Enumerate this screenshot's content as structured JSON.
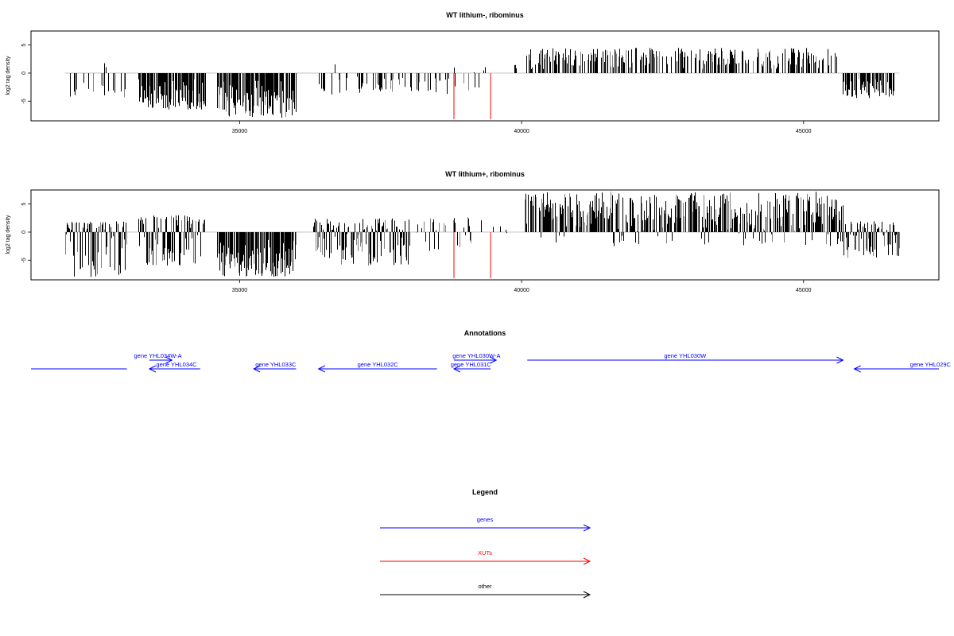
{
  "colors": {
    "gene": "#0000ff",
    "xut": "#ff0000",
    "other": "#000000",
    "bar": "#000000",
    "bar_grey": "#808080",
    "frame": "#000000"
  },
  "chart_data": [
    {
      "type": "bar",
      "title": "WT lithium-, ribominus",
      "ylabel": "log2 tag density",
      "xlim": [
        31300,
        47400
      ],
      "ylim": [
        -8.5,
        7.5
      ],
      "xticks": [
        35000,
        40000,
        45000
      ],
      "xtick_labels": [
        "35000",
        "40000",
        "45000"
      ],
      "yticks": [
        -5,
        0,
        5
      ],
      "ytick_labels": [
        "-5",
        "0",
        "5"
      ],
      "grid": false,
      "density_segments": [
        {
          "x0": 31900,
          "x1": 33000,
          "min": -4.5,
          "max": 0,
          "fill": 0.25
        },
        {
          "x0": 32600,
          "x1": 32700,
          "min": 0,
          "max": 2,
          "fill": 0.4
        },
        {
          "x0": 33200,
          "x1": 34400,
          "min": -6.5,
          "max": 0,
          "fill": 0.8
        },
        {
          "x0": 34600,
          "x1": 36000,
          "min": -8,
          "max": 0,
          "fill": 0.9
        },
        {
          "x0": 36400,
          "x1": 38800,
          "min": -4,
          "max": 0,
          "fill": 0.25
        },
        {
          "x0": 36600,
          "x1": 36700,
          "min": 0,
          "max": 2.3,
          "fill": 0.3
        },
        {
          "x0": 38800,
          "x1": 39500,
          "min": -3.5,
          "max": 1.5,
          "fill": 0.2
        },
        {
          "x0": 39800,
          "x1": 39900,
          "min": 0,
          "max": 1.5,
          "fill": 0.3
        },
        {
          "x0": 40050,
          "x1": 45600,
          "min": 0,
          "max": 4.5,
          "fill": 0.55
        },
        {
          "x0": 45700,
          "x1": 46600,
          "min": -4.5,
          "max": 0,
          "fill": 0.7
        }
      ],
      "xut_markers": [
        38800,
        39450
      ]
    },
    {
      "type": "bar",
      "title": "WT lithium+, ribominus",
      "ylabel": "log2 tag density",
      "xlim": [
        31300,
        47400
      ],
      "ylim": [
        -8.5,
        7.5
      ],
      "xticks": [
        35000,
        40000,
        45000
      ],
      "xtick_labels": [
        "35000",
        "40000",
        "45000"
      ],
      "yticks": [
        -5,
        0,
        5
      ],
      "ytick_labels": [
        "-5",
        "0",
        "5"
      ],
      "grid": false,
      "density_segments": [
        {
          "x0": 31900,
          "x1": 33000,
          "min": -8,
          "max": 2,
          "fill": 0.85
        },
        {
          "x0": 33200,
          "x1": 34400,
          "min": -6,
          "max": 3,
          "fill": 0.85
        },
        {
          "x0": 34600,
          "x1": 36000,
          "min": -8,
          "max": 0,
          "fill": 0.95
        },
        {
          "x0": 36300,
          "x1": 38000,
          "min": -6,
          "max": 2.5,
          "fill": 0.9
        },
        {
          "x0": 38000,
          "x1": 39300,
          "min": -3.5,
          "max": 3,
          "fill": 0.45
        },
        {
          "x0": 39400,
          "x1": 39900,
          "min": -1.5,
          "max": 1.5,
          "fill": 0.15
        },
        {
          "x0": 40050,
          "x1": 45700,
          "min": -2.5,
          "max": 7.2,
          "fill": 0.8
        },
        {
          "x0": 45700,
          "x1": 46700,
          "min": -5,
          "max": 2,
          "fill": 0.8
        }
      ],
      "xut_markers": [
        38800,
        39450
      ]
    }
  ],
  "annotations": {
    "title": "Annotations",
    "genes": [
      {
        "label": "",
        "x0": 31300,
        "x1": 33000,
        "row": 2,
        "dir": "none",
        "label_x": 0
      },
      {
        "label": "gene YHL034W-A",
        "x0": 33400,
        "x1": 33800,
        "row": 1,
        "dir": "right",
        "label_x": 33550
      },
      {
        "label": "gene YHL034C",
        "x0": 33400,
        "x1": 34300,
        "row": 2,
        "dir": "left",
        "label_x": 33880
      },
      {
        "label": "gene YHL033C",
        "x0": 35250,
        "x1": 36000,
        "row": 2,
        "dir": "left",
        "label_x": 35640
      },
      {
        "label": "gene YHL032C",
        "x0": 36400,
        "x1": 38500,
        "row": 2,
        "dir": "left",
        "label_x": 37450
      },
      {
        "label": "gene YHL030W-A",
        "x0": 38800,
        "x1": 39550,
        "row": 1,
        "dir": "right",
        "label_x": 39200
      },
      {
        "label": "gene YHL031C",
        "x0": 38800,
        "x1": 39450,
        "row": 2,
        "dir": "left",
        "label_x": 39100
      },
      {
        "label": "gene YHL030W",
        "x0": 40100,
        "x1": 45700,
        "row": 1,
        "dir": "right",
        "label_x": 42900
      },
      {
        "label": "gene YHL029C",
        "x0": 45900,
        "x1": 47400,
        "row": 2,
        "dir": "left",
        "label_x": 47250
      }
    ]
  },
  "legend": {
    "title": "Legend",
    "items": [
      {
        "label": "genes",
        "color": "#0000ff"
      },
      {
        "label": "XUTs",
        "color": "#ff0000"
      },
      {
        "label": "other",
        "color": "#000000"
      }
    ]
  }
}
